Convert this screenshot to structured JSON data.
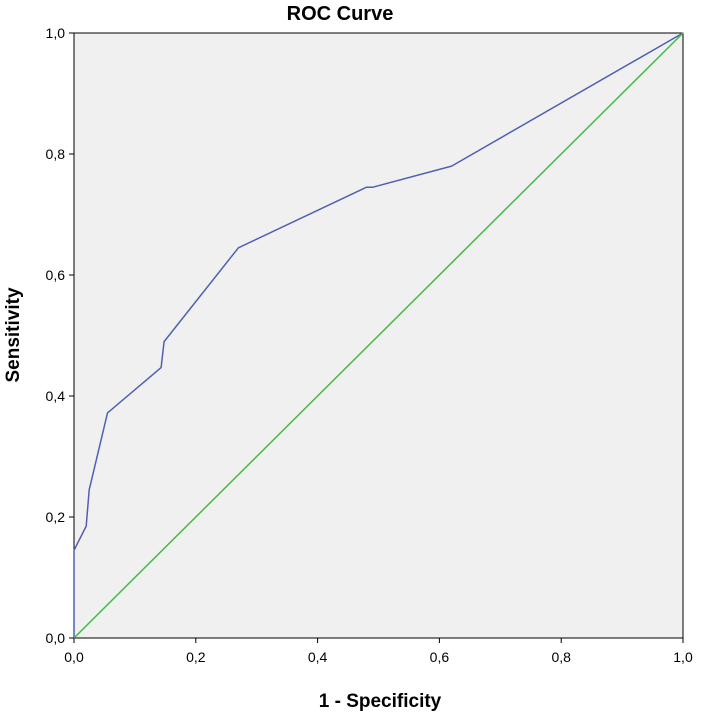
{
  "chart_data": {
    "type": "line",
    "title": "ROC Curve",
    "xlabel": "1 - Specificity",
    "ylabel": "Sensitivity",
    "xlim": [
      0,
      1
    ],
    "ylim": [
      0,
      1
    ],
    "x_ticks": [
      "0,0",
      "0,2",
      "0,4",
      "0,6",
      "0,8",
      "1,0"
    ],
    "y_ticks": [
      "0,0",
      "0,2",
      "0,4",
      "0,6",
      "0,8",
      "1,0"
    ],
    "grid": false,
    "plot_background": "#f0f0f0",
    "series": [
      {
        "color": "#5060b0",
        "points": [
          [
            0.0,
            0.0
          ],
          [
            0.0,
            0.145
          ],
          [
            0.02,
            0.185
          ],
          [
            0.025,
            0.245
          ],
          [
            0.055,
            0.372
          ],
          [
            0.143,
            0.447
          ],
          [
            0.148,
            0.49
          ],
          [
            0.27,
            0.645
          ],
          [
            0.48,
            0.745
          ],
          [
            0.49,
            0.745
          ],
          [
            0.62,
            0.78
          ],
          [
            1.0,
            1.0
          ]
        ]
      },
      {
        "color": "#44bb44",
        "points": [
          [
            0.0,
            0.0
          ],
          [
            1.0,
            1.0
          ]
        ]
      }
    ]
  }
}
